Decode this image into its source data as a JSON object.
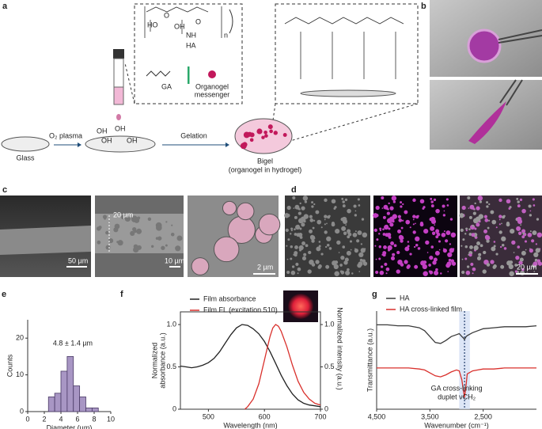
{
  "panels": {
    "a": {
      "label": "a",
      "ha": "HA",
      "chem": [
        "HO",
        "O",
        "OH",
        "NH",
        "O",
        "n"
      ],
      "ga": "GA",
      "messenger": [
        "Organogel",
        "messenger"
      ],
      "glass": "Glass",
      "plasma": "O₂ plasma",
      "oh": [
        "OH",
        "OH",
        "OH",
        "OH"
      ],
      "gelation": "Gelation",
      "bigel": "Bigel",
      "bigel_note": "(organogel in hydrogel)"
    },
    "b": {
      "label": "b"
    },
    "c": {
      "label": "c",
      "scale_bars": [
        "50 µm",
        "10 µm",
        "2 µm"
      ],
      "thickness": "20 µm"
    },
    "d": {
      "label": "d",
      "scale_bar": "20 µm"
    }
  },
  "chart_data": [
    {
      "type": "histogram",
      "panel": "e",
      "xlabel": "Diameter (µm)",
      "ylabel": "Counts",
      "annotation": "4.8 ± 1.4 µm",
      "color": "#a896c4",
      "bins": [
        2.5,
        3.25,
        4,
        4.75,
        5.5,
        6.25,
        7,
        7.75,
        8.5
      ],
      "counts": [
        4,
        5,
        11,
        15,
        7,
        4,
        1,
        1
      ],
      "xlim": [
        0,
        10
      ],
      "xticks": [
        0,
        2,
        4,
        6,
        8,
        10
      ],
      "ylim": [
        0,
        25
      ],
      "yticks": [
        0,
        10,
        20
      ]
    },
    {
      "type": "line",
      "panel": "f",
      "xlabel": "Wavelength (nm)",
      "ylabel": [
        "Normalized",
        "absorbance (a.u.)"
      ],
      "y2label": "Normalized intensity (a.u.)",
      "legend": "upper left",
      "xlim": [
        450,
        700
      ],
      "xticks": [
        500,
        600,
        700
      ],
      "ylim": [
        0,
        1.15
      ],
      "yticks": [
        0,
        0.5,
        {
          "value": 1,
          "label": "1.0"
        }
      ],
      "y2lim": [
        0,
        1.15
      ],
      "y2ticks": [
        0,
        0.5,
        {
          "value": 1,
          "label": "1.0"
        }
      ],
      "series": [
        {
          "name": "Film absorbance",
          "color": "#222222",
          "x": [
            450,
            460,
            470,
            480,
            490,
            500,
            510,
            520,
            530,
            540,
            550,
            560,
            570,
            580,
            590,
            600,
            610,
            620,
            630,
            640,
            650,
            660,
            670,
            680,
            690,
            700
          ],
          "values": [
            0.51,
            0.5,
            0.49,
            0.5,
            0.52,
            0.55,
            0.6,
            0.68,
            0.78,
            0.88,
            0.96,
            1.0,
            0.99,
            0.95,
            0.89,
            0.8,
            0.68,
            0.54,
            0.4,
            0.28,
            0.18,
            0.11,
            0.07,
            0.05,
            0.04,
            0.03
          ]
        },
        {
          "name": "Film FL (excitation 510)",
          "color": "#d9302c",
          "axis": "y2",
          "x": [
            565,
            570,
            580,
            590,
            600,
            605,
            610,
            615,
            620,
            625,
            630,
            640,
            650,
            660,
            670,
            680,
            690,
            700
          ],
          "values": [
            0,
            0.03,
            0.12,
            0.3,
            0.58,
            0.72,
            0.86,
            0.96,
            1.0,
            0.98,
            0.92,
            0.74,
            0.52,
            0.33,
            0.2,
            0.12,
            0.07,
            0.05
          ]
        }
      ]
    },
    {
      "type": "line",
      "panel": "g",
      "xlabel": "Wavenumber (cm⁻¹)",
      "ylabel": "Transmittance (a.u.)",
      "legend": "upper left",
      "annotation": [
        "GA cross-linking",
        "duplet νCH₂"
      ],
      "xlim": [
        4500,
        1500
      ],
      "xticks": [
        {
          "value": 4500,
          "label": "4,500"
        },
        {
          "value": 3500,
          "label": "3,500"
        },
        {
          "value": 2500,
          "label": "2,500"
        }
      ],
      "ylim": [
        0,
        1
      ],
      "highlight": [
        2950,
        2750
      ],
      "marker_x": 2850,
      "series": [
        {
          "name": "HA",
          "color": "#3a3a3a",
          "x": [
            4500,
            4300,
            4100,
            3900,
            3700,
            3600,
            3500,
            3400,
            3300,
            3200,
            3100,
            3000,
            2950,
            2900,
            2880,
            2850,
            2820,
            2800,
            2700,
            2600,
            2500,
            2300,
            2100,
            1900,
            1700,
            1500
          ],
          "values": [
            0.86,
            0.86,
            0.85,
            0.85,
            0.83,
            0.8,
            0.74,
            0.68,
            0.67,
            0.7,
            0.74,
            0.76,
            0.77,
            0.74,
            0.73,
            0.71,
            0.74,
            0.75,
            0.78,
            0.8,
            0.82,
            0.83,
            0.84,
            0.84,
            0.84,
            0.85
          ]
        },
        {
          "name": "HA cross-linked film",
          "color": "#d9302c",
          "x": [
            4500,
            4300,
            4100,
            3900,
            3700,
            3600,
            3500,
            3400,
            3300,
            3200,
            3100,
            3000,
            2950,
            2900,
            2880,
            2850,
            2820,
            2800,
            2700,
            2600,
            2500,
            2300,
            2100,
            1900,
            1700,
            1500
          ],
          "values": [
            0.42,
            0.42,
            0.42,
            0.42,
            0.41,
            0.4,
            0.37,
            0.34,
            0.33,
            0.35,
            0.38,
            0.4,
            0.39,
            0.3,
            0.22,
            0.12,
            0.25,
            0.36,
            0.39,
            0.4,
            0.41,
            0.41,
            0.42,
            0.42,
            0.42,
            0.42
          ]
        }
      ]
    }
  ]
}
